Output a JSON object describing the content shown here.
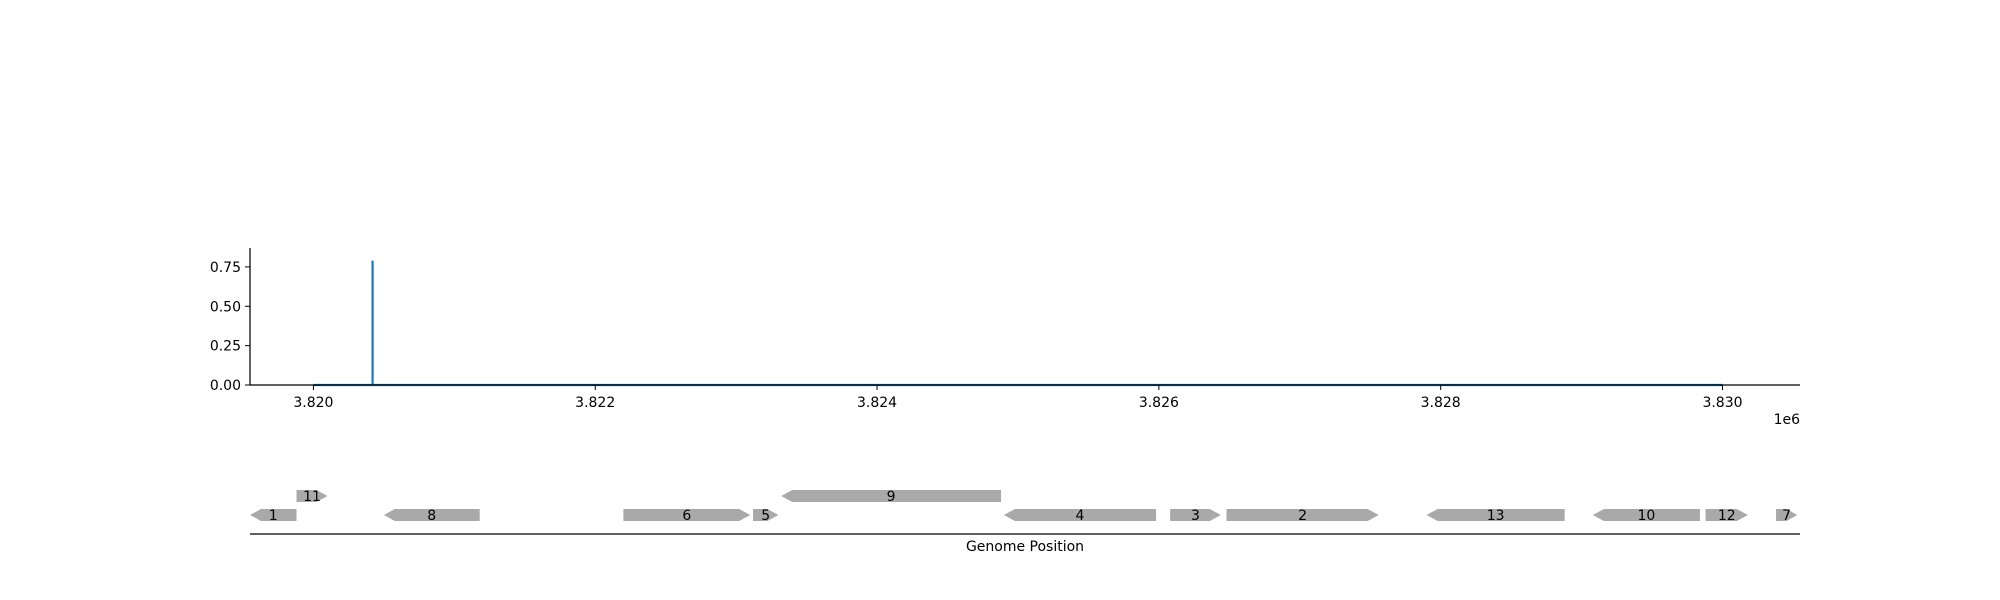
{
  "chart_data": [
    {
      "type": "line",
      "title": "",
      "xlabel": "",
      "ylabel": "",
      "offset_label": "1e6",
      "xlim": [
        3.81955,
        3.83055
      ],
      "ylim": [
        0,
        0.87
      ],
      "x_ticks": [
        3.82,
        3.822,
        3.824,
        3.826,
        3.828,
        3.83
      ],
      "x_tick_labels": [
        "3.820",
        "3.822",
        "3.824",
        "3.826",
        "3.828",
        "3.830"
      ],
      "y_ticks": [
        0.0,
        0.25,
        0.5,
        0.75
      ],
      "y_tick_labels": [
        "0.00",
        "0.25",
        "0.50",
        "0.75"
      ],
      "grid": false,
      "series": [
        {
          "color": "#1f77b4",
          "x": [
            3.82,
            3.82042,
            3.82042,
            3.82042,
            3.83
          ],
          "y": [
            0.0,
            0.0,
            0.79,
            0.0,
            0.0
          ]
        }
      ]
    },
    {
      "type": "gene-track",
      "xlabel": "Genome Position",
      "fill_color": "#a9a9a9",
      "genes": [
        {
          "label": "1",
          "start": 3819550,
          "end": 3819880,
          "strand": "-",
          "row": 0
        },
        {
          "label": "11",
          "start": 3819880,
          "end": 3820100,
          "strand": "+",
          "row": 1
        },
        {
          "label": "8",
          "start": 3820500,
          "end": 3821180,
          "strand": "-",
          "row": 0
        },
        {
          "label": "6",
          "start": 3822200,
          "end": 3823100,
          "strand": "+",
          "row": 0
        },
        {
          "label": "5",
          "start": 3823120,
          "end": 3823300,
          "strand": "+",
          "row": 0
        },
        {
          "label": "9",
          "start": 3823320,
          "end": 3824880,
          "strand": "-",
          "row": 1
        },
        {
          "label": "4",
          "start": 3824900,
          "end": 3825980,
          "strand": "-",
          "row": 0
        },
        {
          "label": "3",
          "start": 3826080,
          "end": 3826440,
          "strand": "+",
          "row": 0
        },
        {
          "label": "2",
          "start": 3826480,
          "end": 3827560,
          "strand": "+",
          "row": 0
        },
        {
          "label": "13",
          "start": 3827900,
          "end": 3828880,
          "strand": "-",
          "row": 0
        },
        {
          "label": "10",
          "start": 3829080,
          "end": 3829840,
          "strand": "-",
          "row": 0
        },
        {
          "label": "12",
          "start": 3829880,
          "end": 3830180,
          "strand": "+",
          "row": 0
        },
        {
          "label": "7",
          "start": 3830380,
          "end": 3830530,
          "strand": "+",
          "row": 0
        }
      ]
    }
  ]
}
